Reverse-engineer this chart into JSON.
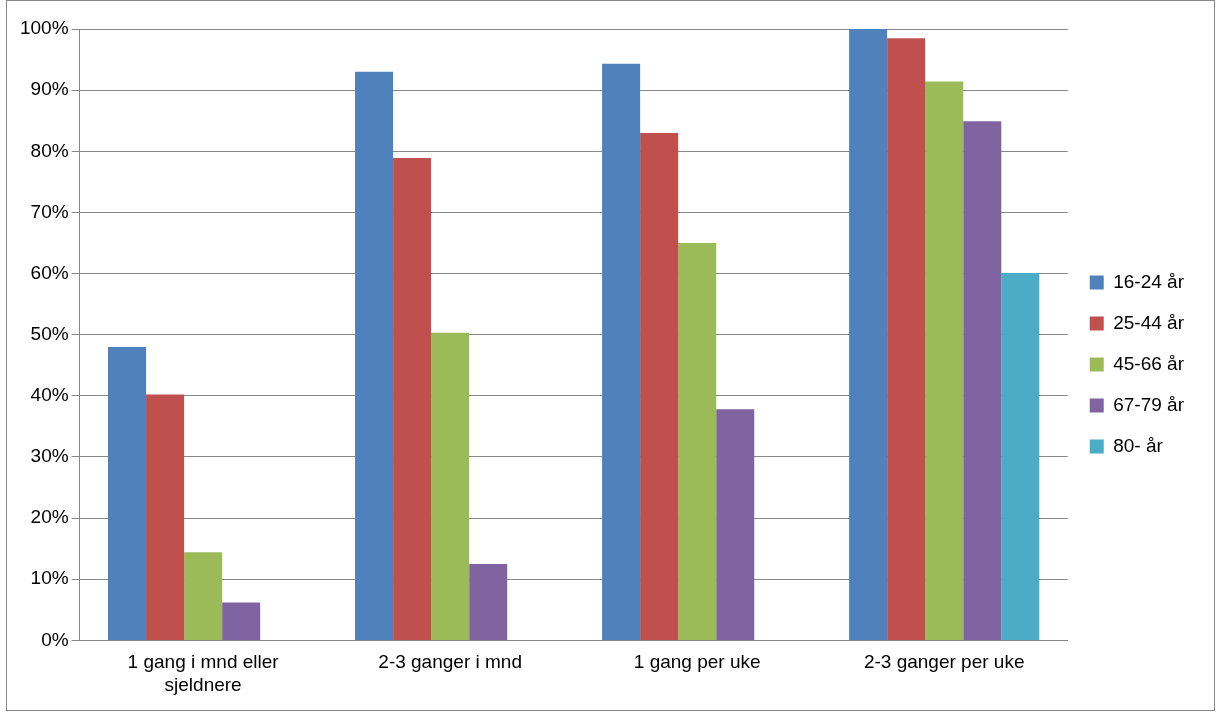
{
  "chart_data": {
    "type": "bar",
    "categories": [
      "1 gang i mnd eller sjeldnere",
      "2-3 ganger i mnd",
      "1 gang per uke",
      "2-3 ganger per uke"
    ],
    "series": [
      {
        "name": "16-24 år",
        "color": "#4f81bd",
        "values": [
          48,
          93,
          94.3,
          100
        ]
      },
      {
        "name": "25-44 år",
        "color": "#c0504d",
        "values": [
          40.2,
          78.9,
          83,
          98.5
        ]
      },
      {
        "name": "45-66 år",
        "color": "#9bbb59",
        "values": [
          14.4,
          50.3,
          65,
          91.4
        ]
      },
      {
        "name": "67-79 år",
        "color": "#8064a2",
        "values": [
          6.2,
          12.5,
          37.8,
          84.9
        ]
      },
      {
        "name": "80- år",
        "color": "#4bacc6",
        "values": [
          null,
          null,
          null,
          60.1
        ]
      }
    ],
    "ylim": [
      0,
      100
    ],
    "yticks": [
      {
        "value": 0,
        "label": "0%"
      },
      {
        "value": 10,
        "label": "10%"
      },
      {
        "value": 20,
        "label": "20%"
      },
      {
        "value": 30,
        "label": "30%"
      },
      {
        "value": 40,
        "label": "40%"
      },
      {
        "value": 50,
        "label": "50%"
      },
      {
        "value": 60,
        "label": "60%"
      },
      {
        "value": 70,
        "label": "70%"
      },
      {
        "value": 80,
        "label": "80%"
      },
      {
        "value": 90,
        "label": "90%"
      },
      {
        "value": 100,
        "label": "100%"
      }
    ],
    "grid": "y",
    "legend": "right"
  }
}
